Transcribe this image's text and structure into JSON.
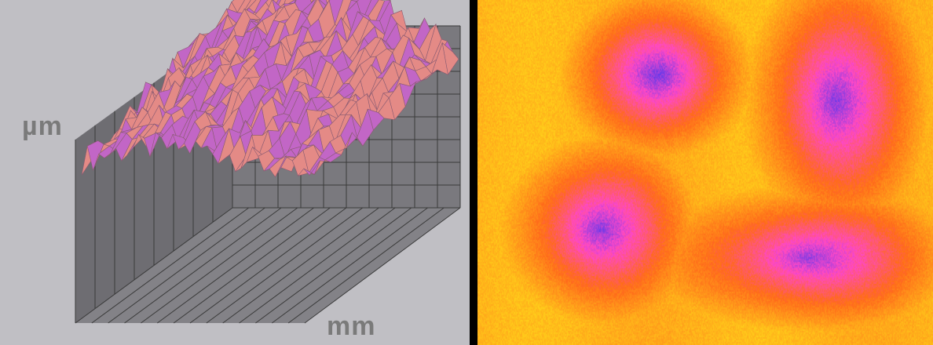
{
  "left_panel": {
    "y_unit_label": "µm",
    "x_unit_label": "mm",
    "colors": {
      "background": "#c0bfc4",
      "wall_back": "#7a797e",
      "wall_side": "#6e6d72",
      "floor": "#838287",
      "grid_line": "#3a3a3a",
      "surface_fill": "#e48a86",
      "surface_shade": "#c266c6",
      "surface_mesh": "#8a5c72"
    }
  },
  "right_panel": {
    "colors": {
      "high": "#ffd21a",
      "mid": "#ff6a1a",
      "low": "#ff48c8",
      "deepest": "#6a3ae8"
    }
  }
}
